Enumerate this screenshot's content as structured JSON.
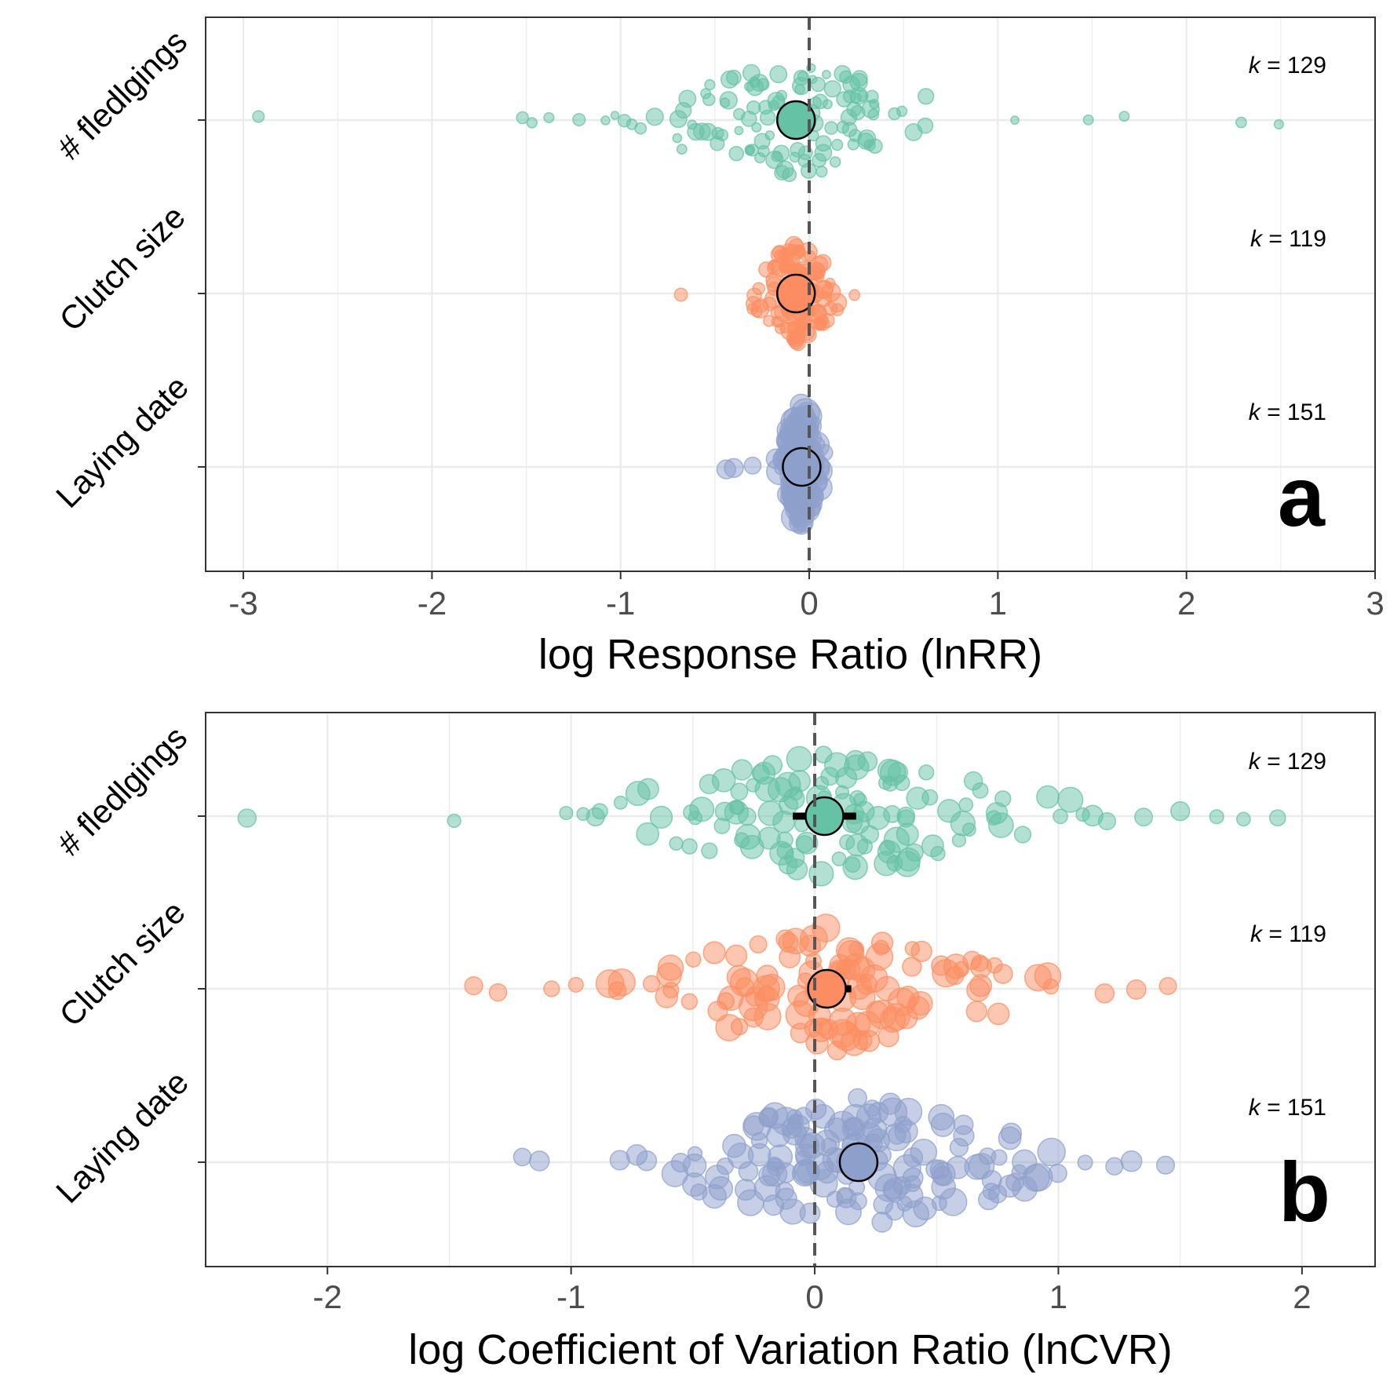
{
  "chart_data": [
    {
      "type": "scatter",
      "panel_label": "a",
      "xlabel": "log Response Ratio (lnRR)",
      "xlim": [
        -3.2,
        3.0
      ],
      "xticks": [
        -3,
        -2,
        -1,
        0,
        1,
        2,
        3
      ],
      "xtick_labels": [
        "-3",
        "-2",
        "-1",
        "0",
        "1",
        "2",
        "3"
      ],
      "reference_line_x": 0,
      "grid": true,
      "categories": [
        "# fledlgings",
        "Clutch size",
        "Laying date"
      ],
      "series": [
        {
          "name": "# fledlgings",
          "color": "#66C2A5",
          "k_label": "k",
          "k_value": "= 129",
          "estimate": -0.07,
          "ci": [
            -0.12,
            -0.02
          ],
          "spread": {
            "min": -2.92,
            "max": 2.5,
            "core_sd": 0.33,
            "tail_frac": 0.14,
            "count": 129,
            "radius_min": 5,
            "radius_max": 11,
            "vertical_spread": 78
          },
          "outliers": [
            -2.92,
            -1.52,
            -1.47,
            -1.38,
            -1.22,
            -1.08,
            -1.03,
            -0.98,
            -0.94,
            1.09,
            1.48,
            1.67,
            2.29,
            2.49
          ]
        },
        {
          "name": "Clutch size",
          "color": "#FC8D62",
          "k_label": "k",
          "k_value": "= 119",
          "estimate": -0.07,
          "ci": [
            -0.09,
            -0.05
          ],
          "spread": {
            "min": -0.68,
            "max": 0.25,
            "core_sd": 0.1,
            "tail_frac": 0.05,
            "count": 119,
            "radius_min": 6,
            "radius_max": 12,
            "vertical_spread": 72
          },
          "outliers": [
            -0.68
          ]
        },
        {
          "name": "Laying date",
          "color": "#8DA0CB",
          "k_label": "k",
          "k_value": "= 151",
          "estimate": -0.04,
          "ci": [
            -0.06,
            -0.02
          ],
          "spread": {
            "min": -0.44,
            "max": 0.15,
            "core_sd": 0.045,
            "tail_frac": 0.06,
            "count": 151,
            "radius_min": 7,
            "radius_max": 18,
            "vertical_spread": 84
          },
          "outliers": [
            -0.44,
            -0.4,
            -0.3
          ]
        }
      ]
    },
    {
      "type": "scatter",
      "panel_label": "b",
      "xlabel": "log Coefficient of Variation Ratio (lnCVR)",
      "xlim": [
        -2.5,
        2.3
      ],
      "xticks": [
        -2,
        -1,
        0,
        1,
        2
      ],
      "xtick_labels": [
        "-2",
        "-1",
        "0",
        "1",
        "2"
      ],
      "reference_line_x": 0,
      "grid": true,
      "categories": [
        "# fledlgings",
        "Clutch size",
        "Laying date"
      ],
      "series": [
        {
          "name": "# fledlgings",
          "color": "#66C2A5",
          "k_label": "k",
          "k_value": "= 129",
          "estimate": 0.04,
          "ci": [
            -0.09,
            0.17
          ],
          "spread": {
            "min": -2.33,
            "max": 1.9,
            "core_sd": 0.42,
            "tail_frac": 0.18,
            "count": 129,
            "radius_min": 8,
            "radius_max": 16,
            "vertical_spread": 80
          },
          "outliers": [
            -2.33,
            -1.48,
            -1.02,
            -0.95,
            -0.9,
            1.1,
            1.2,
            1.35,
            1.5,
            1.65,
            1.76,
            1.9
          ]
        },
        {
          "name": "Clutch size",
          "color": "#FC8D62",
          "k_label": "k",
          "k_value": "= 119",
          "estimate": 0.05,
          "ci": [
            -0.03,
            0.15
          ],
          "spread": {
            "min": -1.4,
            "max": 1.45,
            "core_sd": 0.33,
            "tail_frac": 0.12,
            "count": 119,
            "radius_min": 9,
            "radius_max": 18,
            "vertical_spread": 82
          },
          "outliers": [
            -1.4,
            -1.3,
            -1.08,
            -0.98,
            -0.81,
            -0.67,
            -0.59,
            0.97,
            1.19,
            1.32,
            1.45
          ]
        },
        {
          "name": "Laying date",
          "color": "#8DA0CB",
          "k_label": "k",
          "k_value": "= 151",
          "estimate": 0.18,
          "ci": [
            0.1,
            0.26
          ],
          "spread": {
            "min": -1.2,
            "max": 1.45,
            "core_sd": 0.36,
            "tail_frac": 0.12,
            "count": 151,
            "radius_min": 9,
            "radius_max": 18,
            "vertical_spread": 84
          },
          "outliers": [
            -1.2,
            -1.13,
            -0.8,
            -0.69,
            -0.55,
            1.11,
            1.23,
            1.3,
            1.44
          ]
        }
      ]
    }
  ]
}
